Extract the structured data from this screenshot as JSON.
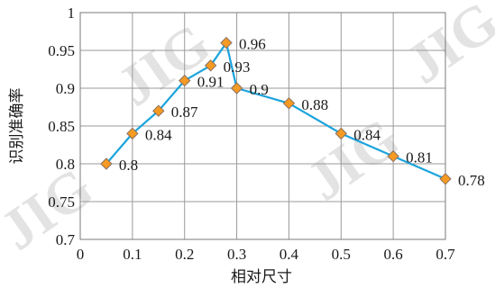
{
  "chart_data": {
    "type": "line",
    "xlabel": "相对尺寸",
    "ylabel": "识别准确率",
    "xlim": [
      0,
      0.7
    ],
    "ylim": [
      0.7,
      1
    ],
    "x_ticks": [
      "0",
      "0.1",
      "0.2",
      "0.3",
      "0.4",
      "0.5",
      "0.6",
      "0.7"
    ],
    "y_ticks": [
      "0.7",
      "0.75",
      "0.8",
      "0.85",
      "0.9",
      "0.95",
      "1"
    ],
    "grid": true,
    "legend": "none",
    "series": [
      {
        "x": [
          0.05,
          0.1,
          0.15,
          0.2,
          0.25,
          0.28,
          0.3,
          0.4,
          0.5,
          0.6,
          0.7
        ],
        "y": [
          0.8,
          0.84,
          0.87,
          0.91,
          0.93,
          0.96,
          0.9,
          0.88,
          0.84,
          0.81,
          0.78
        ],
        "labels": [
          "0.8",
          "0.84",
          "0.87",
          "0.91",
          "0.93",
          "0.96",
          "0.9",
          "0.88",
          "0.84",
          "0.81",
          "0.78"
        ],
        "line_color": "#1aa3dc",
        "marker_color": "#f59a23",
        "marker_edge_color": "#8a7060",
        "marker": "diamond"
      }
    ],
    "watermark": "JIG"
  }
}
